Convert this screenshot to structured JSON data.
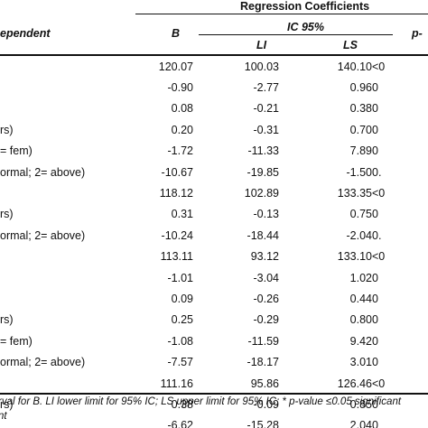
{
  "header": {
    "group_title": "Regression Coefficients",
    "dependent_label": "ependent",
    "col_b": "B",
    "ic_label": "IC 95%",
    "col_li": "LI",
    "col_ls": "LS",
    "col_p": "p-"
  },
  "rows": [
    {
      "label": "",
      "b": "120.07",
      "li": "100.03",
      "ls": "140.10",
      "p": "<0"
    },
    {
      "label": "",
      "b": "-0.90",
      "li": "-2.77",
      "ls": "0.96",
      "p": "0"
    },
    {
      "label": "",
      "b": "0.08",
      "li": "-0.21",
      "ls": "0.38",
      "p": "0"
    },
    {
      "label": "rs)",
      "b": "0.20",
      "li": "-0.31",
      "ls": "0.70",
      "p": "0"
    },
    {
      "label": "= fem)",
      "b": "-1.72",
      "li": "-11.33",
      "ls": "7.89",
      "p": "0"
    },
    {
      "label": "ormal; 2= above)",
      "b": "-10.67",
      "li": "-19.85",
      "ls": "-1.50",
      "p": "0."
    },
    {
      "label": "",
      "b": "118.12",
      "li": "102.89",
      "ls": "133.35",
      "p": "<0"
    },
    {
      "label": "rs)",
      "b": "0.31",
      "li": "-0.13",
      "ls": "0.75",
      "p": "0"
    },
    {
      "label": "ormal; 2= above)",
      "b": "-10.24",
      "li": "-18.44",
      "ls": "-2.04",
      "p": "0."
    },
    {
      "label": "",
      "b": "113.11",
      "li": "93.12",
      "ls": "133.10",
      "p": "<0"
    },
    {
      "label": "",
      "b": "-1.01",
      "li": "-3.04",
      "ls": "1.02",
      "p": "0"
    },
    {
      "label": "",
      "b": "0.09",
      "li": "-0.26",
      "ls": "0.44",
      "p": "0"
    },
    {
      "label": "rs)",
      "b": "0.25",
      "li": "-0.29",
      "ls": "0.80",
      "p": "0"
    },
    {
      "label": "= fem)",
      "b": "-1.08",
      "li": "-11.59",
      "ls": "9.42",
      "p": "0"
    },
    {
      "label": "ormal; 2= above)",
      "b": "-7.57",
      "li": "-18.17",
      "ls": "3.01",
      "p": "0"
    },
    {
      "label": "",
      "b": "111.16",
      "li": "95.86",
      "ls": "126.46",
      "p": "<0"
    },
    {
      "label": "rs)",
      "b": "0.38",
      "li": "-0.09",
      "ls": "0.85",
      "p": "0"
    },
    {
      "label": "",
      "b": "-6.62",
      "li": "-15.28",
      "ls": "2.04",
      "p": "0"
    }
  ],
  "footnote": {
    "line1": "rval for B. LI lower limit for 95% IC; LS upper limit for 95% IC; * p-value ≤0.05 significant",
    "line2": "nt"
  }
}
